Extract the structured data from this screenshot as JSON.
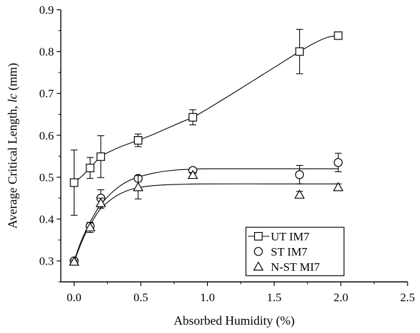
{
  "chart_data": {
    "type": "scatter",
    "xlabel": "Absorbed Humidity (%)",
    "ylabel_prefix": "Average Critical Length, ",
    "ylabel_symbol": "lc",
    "ylabel_suffix": " (mm)",
    "xlim": [
      -0.1,
      2.5
    ],
    "ylim": [
      0.25,
      0.9
    ],
    "xticks": [
      "0.0",
      "0.5",
      "1.0",
      "1.5",
      "2.0",
      "2.5"
    ],
    "yticks": [
      "0.3",
      "0.4",
      "0.5",
      "0.6",
      "0.7",
      "0.8",
      "0.9"
    ],
    "grid": false,
    "legend_position": "bottom-right",
    "series": [
      {
        "name": "UT IM7",
        "marker": "square",
        "points": [
          {
            "x": 0.0,
            "y": 0.487,
            "err": 0.078
          },
          {
            "x": 0.12,
            "y": 0.522,
            "err": 0.025
          },
          {
            "x": 0.2,
            "y": 0.549,
            "err": 0.05
          },
          {
            "x": 0.48,
            "y": 0.588,
            "err": 0.015
          },
          {
            "x": 0.89,
            "y": 0.643,
            "err": 0.018
          },
          {
            "x": 1.69,
            "y": 0.8,
            "err": 0.053
          },
          {
            "x": 1.98,
            "y": 0.838,
            "err": 0.008
          }
        ],
        "fit": [
          [
            0.0,
            0.487
          ],
          [
            0.05,
            0.5
          ],
          [
            0.12,
            0.522
          ],
          [
            0.2,
            0.549
          ],
          [
            0.3,
            0.566
          ],
          [
            0.4,
            0.579
          ],
          [
            0.48,
            0.588
          ],
          [
            0.6,
            0.603
          ],
          [
            0.7,
            0.617
          ],
          [
            0.8,
            0.631
          ],
          [
            0.89,
            0.643
          ],
          [
            1.0,
            0.663
          ],
          [
            1.2,
            0.702
          ],
          [
            1.4,
            0.742
          ],
          [
            1.6,
            0.782
          ],
          [
            1.69,
            0.8
          ],
          [
            1.8,
            0.82
          ],
          [
            1.9,
            0.834
          ],
          [
            1.98,
            0.838
          ]
        ]
      },
      {
        "name": "ST IM7",
        "marker": "circle",
        "points": [
          {
            "x": 0.0,
            "y": 0.3,
            "err": 0.004
          },
          {
            "x": 0.12,
            "y": 0.383,
            "err": 0.008
          },
          {
            "x": 0.2,
            "y": 0.45,
            "err": 0.02
          },
          {
            "x": 0.48,
            "y": 0.497,
            "err": 0.006
          },
          {
            "x": 0.89,
            "y": 0.516,
            "err": 0.006
          },
          {
            "x": 1.69,
            "y": 0.506,
            "err": 0.022
          },
          {
            "x": 1.98,
            "y": 0.535,
            "err": 0.022
          }
        ],
        "fit": [
          [
            0.0,
            0.3
          ],
          [
            0.05,
            0.345
          ],
          [
            0.1,
            0.38
          ],
          [
            0.15,
            0.41
          ],
          [
            0.2,
            0.435
          ],
          [
            0.3,
            0.468
          ],
          [
            0.4,
            0.49
          ],
          [
            0.5,
            0.502
          ],
          [
            0.6,
            0.51
          ],
          [
            0.7,
            0.515
          ],
          [
            0.8,
            0.518
          ],
          [
            0.9,
            0.519
          ],
          [
            1.0,
            0.52
          ],
          [
            1.5,
            0.52
          ],
          [
            1.98,
            0.52
          ]
        ]
      },
      {
        "name": "N-ST MI7",
        "marker": "triangle",
        "points": [
          {
            "x": 0.0,
            "y": 0.298,
            "err": 0.004
          },
          {
            "x": 0.12,
            "y": 0.38,
            "err": 0.012
          },
          {
            "x": 0.2,
            "y": 0.438,
            "err": 0.012
          },
          {
            "x": 0.48,
            "y": 0.476,
            "err": 0.028
          },
          {
            "x": 0.89,
            "y": 0.505,
            "err": 0.006
          },
          {
            "x": 1.69,
            "y": 0.458,
            "err": 0.008
          },
          {
            "x": 1.98,
            "y": 0.476,
            "err": 0.008
          }
        ],
        "fit": [
          [
            0.0,
            0.298
          ],
          [
            0.05,
            0.34
          ],
          [
            0.1,
            0.375
          ],
          [
            0.15,
            0.402
          ],
          [
            0.2,
            0.425
          ],
          [
            0.3,
            0.452
          ],
          [
            0.4,
            0.468
          ],
          [
            0.5,
            0.476
          ],
          [
            0.6,
            0.48
          ],
          [
            0.7,
            0.482
          ],
          [
            0.8,
            0.483
          ],
          [
            1.0,
            0.484
          ],
          [
            1.5,
            0.484
          ],
          [
            1.98,
            0.484
          ]
        ]
      }
    ]
  }
}
